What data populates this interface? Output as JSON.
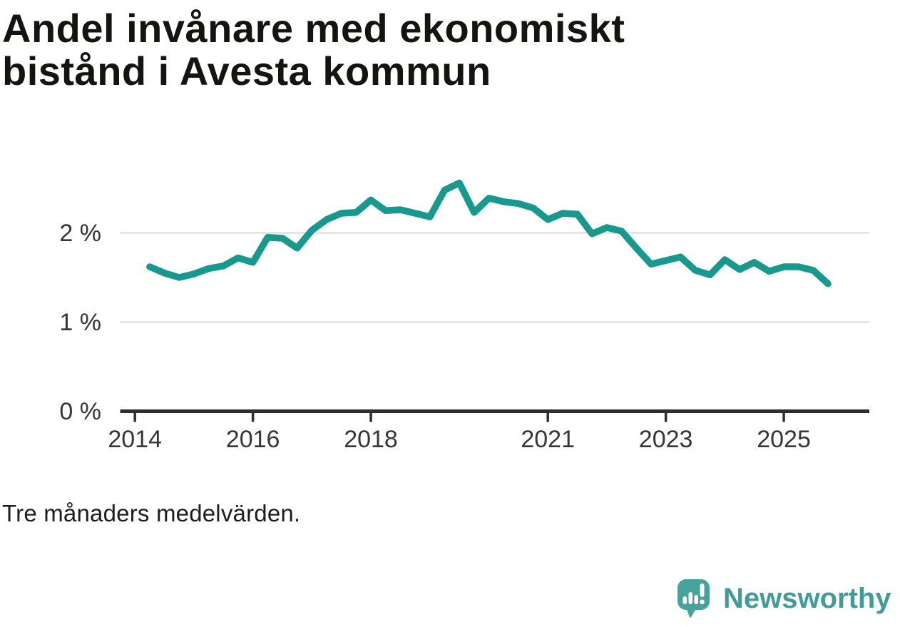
{
  "title_lines": {
    "line1": "Andel invånare med ekonomiskt",
    "line2": "bistånd i Avesta kommun"
  },
  "footnote": "Tre månaders medelvärden.",
  "logo": {
    "text": "Newsworthy"
  },
  "colors": {
    "line": "#17998d",
    "grid": "#dcdcdc",
    "axis": "#2e2e2e",
    "tick_label": "#363636",
    "title_text": "#141411",
    "logo_teal": "#46a39b",
    "logo_mark_white": "#ffffff",
    "logo_text": "#3f9d98"
  },
  "chart_data": {
    "type": "line",
    "title": "Andel invånare med ekonomiskt bistånd i Avesta kommun",
    "footnote": "Tre månaders medelvärden.",
    "unit": "%",
    "grid": "horizontal gridlines at 1 % and 2 %",
    "legend_position": "none",
    "xlabel": "",
    "ylabel": "",
    "x_ticks": [
      2014,
      2016,
      2018,
      2021,
      2023,
      2025
    ],
    "x_tick_labels": [
      "2014",
      "2016",
      "2018",
      "2021",
      "2023",
      "2025"
    ],
    "y_ticks": [
      0,
      1,
      2
    ],
    "y_tick_labels": [
      "0 %",
      "1 %",
      "2 %"
    ],
    "y_gridlines": [
      1,
      2
    ],
    "xlim": [
      2013.75,
      2026.45
    ],
    "ylim": [
      0,
      2.85
    ],
    "series": [
      {
        "name": "Andel invånare med ekonomiskt bistånd, tre månaders medelvärde",
        "color": "#17998d",
        "x": [
          2014.25,
          2014.5,
          2014.75,
          2015.0,
          2015.25,
          2015.5,
          2015.75,
          2016.0,
          2016.25,
          2016.5,
          2016.75,
          2017.0,
          2017.25,
          2017.5,
          2017.75,
          2018.0,
          2018.25,
          2018.5,
          2018.75,
          2019.0,
          2019.25,
          2019.5,
          2019.75,
          2020.0,
          2020.25,
          2020.5,
          2020.75,
          2021.0,
          2021.25,
          2021.5,
          2021.75,
          2022.0,
          2022.25,
          2022.5,
          2022.75,
          2023.0,
          2023.25,
          2023.5,
          2023.75,
          2024.0,
          2024.25,
          2024.5,
          2024.75,
          2025.0,
          2025.25,
          2025.5,
          2025.75
        ],
        "values": [
          1.62,
          1.55,
          1.5,
          1.54,
          1.6,
          1.63,
          1.72,
          1.67,
          1.95,
          1.94,
          1.83,
          2.03,
          2.15,
          2.22,
          2.23,
          2.37,
          2.25,
          2.26,
          2.22,
          2.18,
          2.48,
          2.56,
          2.23,
          2.39,
          2.35,
          2.33,
          2.28,
          2.15,
          2.22,
          2.21,
          1.99,
          2.06,
          2.02,
          1.83,
          1.65,
          1.69,
          1.73,
          1.58,
          1.53,
          1.7,
          1.59,
          1.67,
          1.57,
          1.62,
          1.62,
          1.58,
          1.43
        ]
      }
    ]
  }
}
